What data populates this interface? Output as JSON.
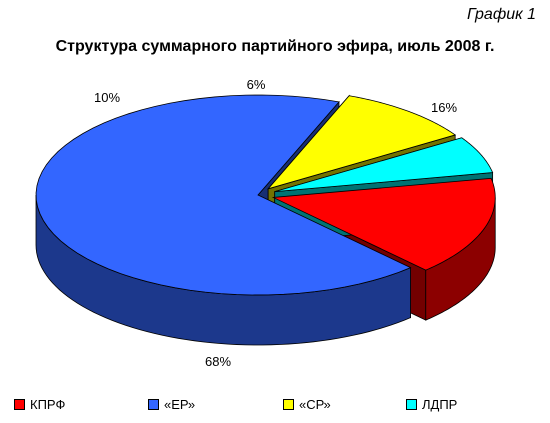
{
  "figure_label": "График 1",
  "chart_data": {
    "type": "pie",
    "title": "Структура суммарного партийного эфира, июль 2008 г.",
    "categories": [
      "КПРФ",
      "«ЕР»",
      "«СР»",
      "ЛДПР"
    ],
    "values": [
      16,
      68,
      10,
      6
    ],
    "value_labels": [
      "16%",
      "68%",
      "10%",
      "6%"
    ],
    "colors": [
      "#ff0000",
      "#3366ff",
      "#ffff00",
      "#00ffff"
    ],
    "style": "3d-exploded",
    "legend_position": "bottom"
  }
}
